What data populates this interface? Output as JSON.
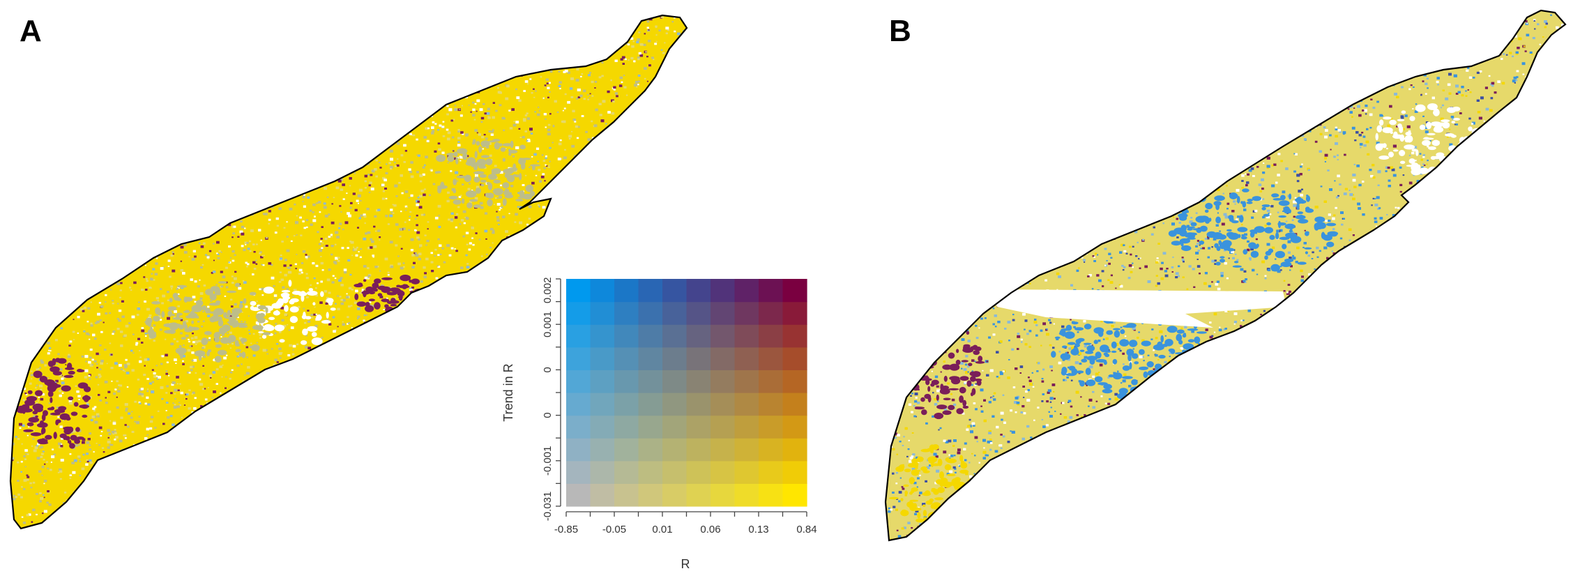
{
  "panels": [
    {
      "label": "A"
    },
    {
      "label": "B"
    }
  ],
  "legend": {
    "xlabel": "R",
    "ylabel": "Trend in R",
    "x_ticks": [
      "-0.85",
      "-0.05",
      "0.01",
      "0.06",
      "0.13",
      "0.84"
    ],
    "y_ticks": [
      "-0.031",
      "-0.001",
      "0",
      "0",
      "0.001",
      "0.002"
    ],
    "grid_size": 10,
    "corner_colors": {
      "low_r_low_trend": "#b8b8b8",
      "high_r_low_trend": "#ffe600",
      "low_r_high_trend": "#0099ee",
      "high_r_high_trend": "#7a0040"
    }
  },
  "colors": {
    "outline": "#000000",
    "yellow": "#f5d800",
    "pale_yellow": "#e6d96a",
    "gray_green": "#bdbd8a",
    "blue": "#3a93dd",
    "light_blue": "#8ab9d8",
    "purple": "#7a1e5a",
    "dark_blue": "#3c4fa3"
  }
}
